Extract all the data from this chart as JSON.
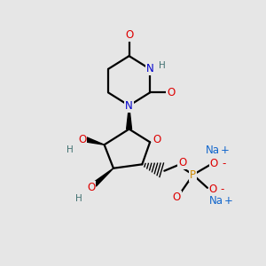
{
  "bg_color": "#e6e6e6",
  "bond_color": "#000000",
  "N_color": "#0000cc",
  "O_color": "#dd0000",
  "P_color": "#cc8800",
  "Na_color": "#1166cc",
  "H_color": "#407070",
  "figsize": [
    3.0,
    3.0
  ],
  "dpi": 100,
  "xlim": [
    0,
    10
  ],
  "ylim": [
    0,
    10
  ]
}
